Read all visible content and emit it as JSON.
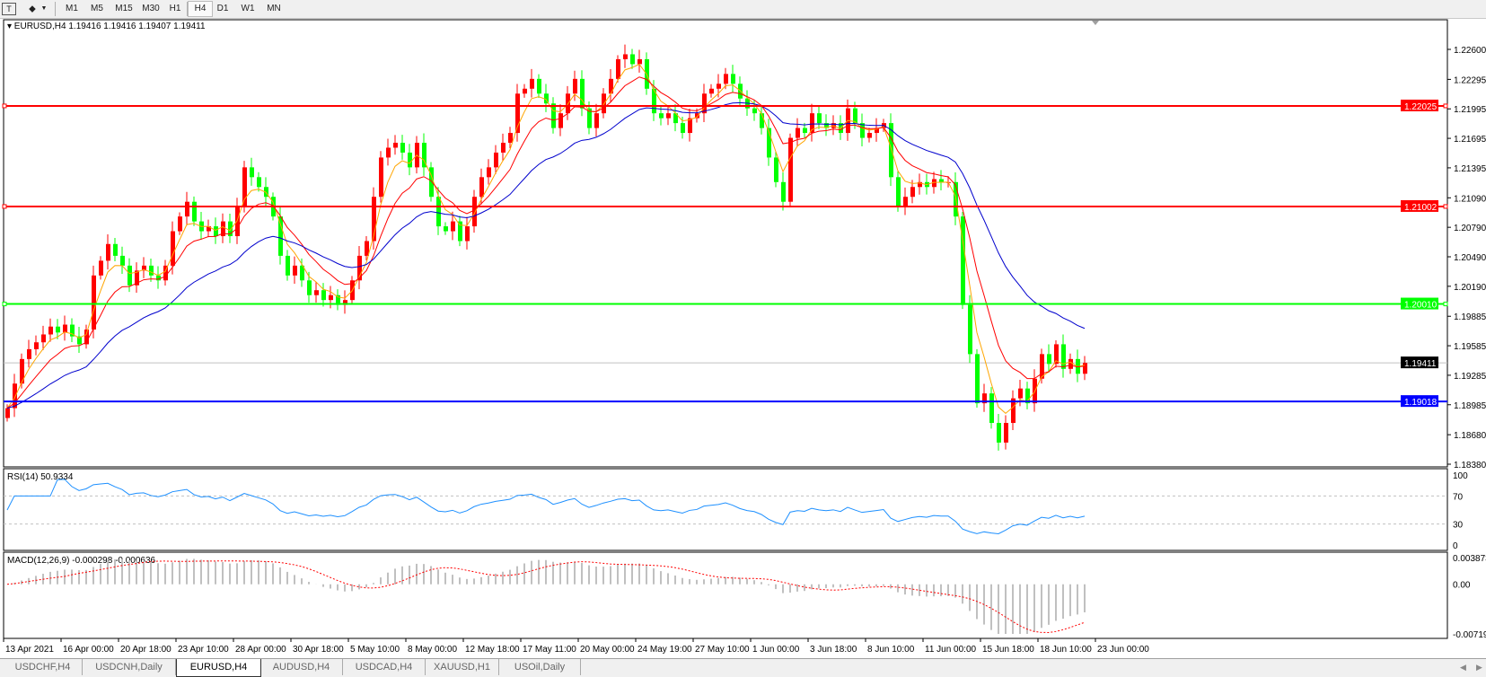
{
  "toolbar": {
    "icons": [
      "text-tool-icon",
      "line-tools-icon",
      "dropdown-arrow-icon"
    ],
    "timeframes": [
      "M1",
      "M5",
      "M15",
      "M30",
      "H1",
      "H4",
      "D1",
      "W1",
      "MN"
    ],
    "active_timeframe": "H4"
  },
  "chart": {
    "symbol_header": "EURUSD,H4  1.19416 1.19416 1.19407 1.19411",
    "price_axis_labels": [
      "1.22600",
      "1.22295",
      "1.21995",
      "1.21695",
      "1.21395",
      "1.21090",
      "1.20790",
      "1.20490",
      "1.20190",
      "1.19885",
      "1.19585",
      "1.19285",
      "1.18985",
      "1.18680",
      "1.18380"
    ],
    "current_price": "1.19411",
    "horizontal_lines": [
      {
        "price": "1.22025",
        "color": "#ff0000"
      },
      {
        "price": "1.21002",
        "color": "#ff0000"
      },
      {
        "price": "1.20010",
        "color": "#00ff00"
      },
      {
        "price": "1.19018",
        "color": "#0000ff"
      }
    ],
    "candle_colors": {
      "up": "#ff0000",
      "down": "#00ff00"
    },
    "ma_colors": [
      "#ffa500",
      "#ff0000",
      "#0000cd"
    ],
    "time_axis_labels": [
      "13 Apr 2021",
      "16 Apr 00:00",
      "20 Apr 18:00",
      "23 Apr 10:00",
      "28 Apr 00:00",
      "30 Apr 18:00",
      "5 May 10:00",
      "8 May 00:00",
      "12 May 18:00",
      "17 May 11:00",
      "20 May 00:00",
      "24 May 19:00",
      "27 May 10:00",
      "1 Jun 00:00",
      "3 Jun 18:00",
      "8 Jun 10:00",
      "11 Jun 00:00",
      "15 Jun 18:00",
      "18 Jun 10:00",
      "23 Jun 00:00"
    ]
  },
  "rsi": {
    "label": "RSI(14) 50.9334",
    "axis_labels": [
      "100",
      "70",
      "30",
      "0"
    ],
    "levels": [
      70,
      30
    ],
    "color": "#1e90ff"
  },
  "macd": {
    "label": "MACD(12,26,9) -0.000298 -0.000636",
    "axis_labels": [
      "0.003873",
      "0.00",
      "-0.007195"
    ],
    "range": [
      -0.007195,
      0.003873
    ],
    "histogram_color": "#c0c0c0",
    "signal_color": "#ff0000"
  },
  "chart_data": {
    "type": "candlestick",
    "symbol": "EURUSD",
    "timeframe": "H4",
    "ylim": [
      1.1838,
      1.226
    ],
    "closes": [
      1.1895,
      1.192,
      1.1945,
      1.1955,
      1.1962,
      1.197,
      1.1978,
      1.1972,
      1.198,
      1.1968,
      1.196,
      1.1975,
      1.203,
      1.2045,
      1.2062,
      1.205,
      1.204,
      1.202,
      1.2035,
      1.204,
      1.203,
      1.2025,
      1.204,
      1.2075,
      1.209,
      1.2105,
      1.2085,
      1.2075,
      1.208,
      1.207,
      1.2085,
      1.207,
      1.21,
      1.214,
      1.213,
      1.212,
      1.211,
      1.209,
      1.205,
      1.203,
      1.204,
      1.2025,
      1.201,
      1.2015,
      1.2005,
      1.201,
      1.2,
      1.2005,
      1.2025,
      1.205,
      1.2065,
      1.211,
      1.215,
      1.216,
      1.2165,
      1.2155,
      1.214,
      1.2165,
      1.214,
      1.211,
      1.208,
      1.2075,
      1.2085,
      1.2065,
      1.208,
      1.211,
      1.213,
      1.214,
      1.2155,
      1.2165,
      1.2175,
      1.2215,
      1.222,
      1.223,
      1.2215,
      1.2205,
      1.218,
      1.2195,
      1.2215,
      1.223,
      1.22,
      1.218,
      1.2195,
      1.2215,
      1.223,
      1.225,
      1.2255,
      1.2245,
      1.225,
      1.222,
      1.2195,
      1.219,
      1.2195,
      1.2185,
      1.2175,
      1.219,
      1.2195,
      1.2215,
      1.222,
      1.2225,
      1.2235,
      1.2225,
      1.221,
      1.22,
      1.2195,
      1.218,
      1.215,
      1.2125,
      1.2105,
      1.217,
      1.218,
      1.2175,
      1.2195,
      1.2185,
      1.218,
      1.2185,
      1.2175,
      1.22,
      1.2185,
      1.217,
      1.2175,
      1.218,
      1.2185,
      1.213,
      1.21,
      1.211,
      1.212,
      1.2125,
      1.212,
      1.2128,
      1.2125,
      1.2125,
      1.209,
      1.2,
      1.195,
      1.19,
      1.191,
      1.188,
      1.186,
      1.188,
      1.1905,
      1.1915,
      1.19,
      1.1925,
      1.195,
      1.194,
      1.196,
      1.1935,
      1.1945,
      1.193,
      1.1941
    ]
  },
  "tabs": {
    "items": [
      "USDCHF,H4",
      "USDCNH,Daily",
      "EURUSD,H4",
      "AUDUSD,H4",
      "USDCAD,H4",
      "XAUUSD,H1",
      "USOil,Daily"
    ],
    "active": "EURUSD,H4"
  }
}
